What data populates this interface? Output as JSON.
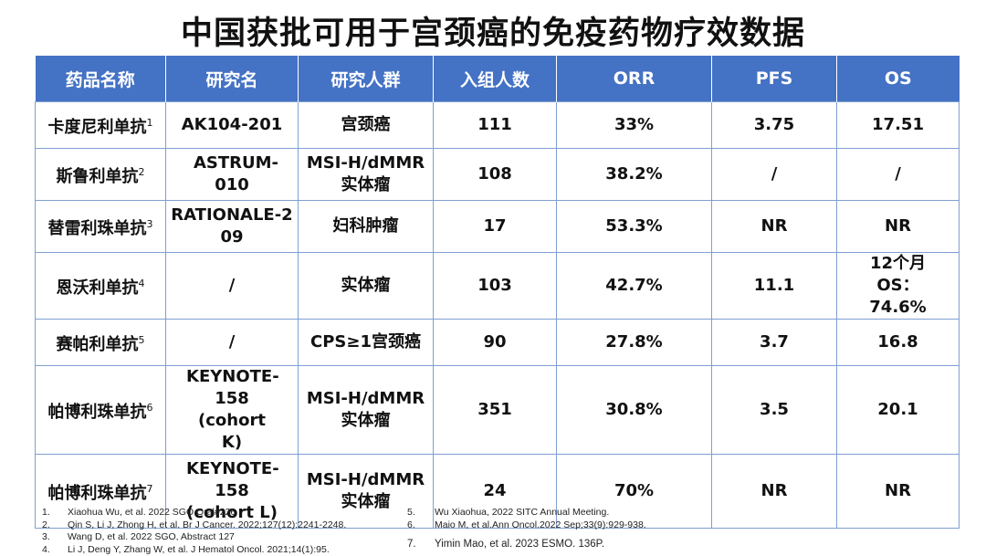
{
  "title": "中国获批可用于宫颈癌的免疫药物疗效数据",
  "table": {
    "headers": [
      "药品名称",
      "研究名",
      "研究人群",
      "入组人数",
      "ORR",
      "PFS",
      "OS"
    ],
    "rows": [
      {
        "drug": "卡度尼利单抗",
        "ref": "1",
        "study": "AK104-201",
        "population": "宫颈癌",
        "n": "111",
        "orr": "33%",
        "pfs": "3.75",
        "os": "17.51"
      },
      {
        "drug": "斯鲁利单抗",
        "ref": "2",
        "study": "ASTRUM-010",
        "population": "MSI-H/dMMR实体瘤",
        "n": "108",
        "orr": "38.2%",
        "pfs": "/",
        "os": "/"
      },
      {
        "drug": "替雷利珠单抗",
        "ref": "3",
        "study": "RATIONALE-209",
        "population": "妇科肿瘤",
        "n": "17",
        "orr": "53.3%",
        "pfs": "NR",
        "os": "NR"
      },
      {
        "drug": "恩沃利单抗",
        "ref": "4",
        "study": "/",
        "population": "实体瘤",
        "n": "103",
        "orr": "42.7%",
        "pfs": "11.1",
        "os": "12个月OS：74.6%"
      },
      {
        "drug": "赛帕利单抗",
        "ref": "5",
        "study": "/",
        "population": "CPS≥1宫颈癌",
        "n": "90",
        "orr": "27.8%",
        "pfs": "3.7",
        "os": "16.8"
      },
      {
        "drug": "帕博利珠单抗",
        "ref": "6",
        "study": "KEYNOTE-158 (cohort K)",
        "population": "MSI-H/dMMR实体瘤",
        "n": "351",
        "orr": "30.8%",
        "pfs": "3.5",
        "os": "20.1"
      },
      {
        "drug": "帕博利珠单抗",
        "ref": "7",
        "study": "KEYNOTE-158 (cohort L)",
        "population": "MSI-H/dMMR实体瘤",
        "n": "24",
        "orr": "70%",
        "pfs": "NR",
        "os": "NR"
      }
    ]
  },
  "references_left": [
    {
      "num": "1.",
      "text": "Xiaohua  Wu, et al. 2022 SGO Oral#226"
    },
    {
      "num": "2.",
      "text": "Qin S, Li J, Zhong  H, et al. Br J Cancer.  2022;127(12):2241-2248."
    },
    {
      "num": "3.",
      "text": "Wang D, et al. 2022 SGO, Abstract 127"
    },
    {
      "num": "4.",
      "text": "Li J, Deng Y, Zhang  W, et al. J Hematol Oncol. 2021;14(1):95."
    }
  ],
  "references_right": [
    {
      "num": "5.",
      "text": "Wu Xiaohua, 2022 SITC Annual Meeting."
    },
    {
      "num": "6.",
      "text": "Maio M, et al.Ann Oncol.2022 Sep;33(9):929-938."
    },
    {
      "num": "7.",
      "text": "Yimin Mao, et al. 2023 ESMO. 136P."
    }
  ],
  "colors": {
    "header_bg": "#4472c4",
    "border": "#7f9fd1"
  }
}
